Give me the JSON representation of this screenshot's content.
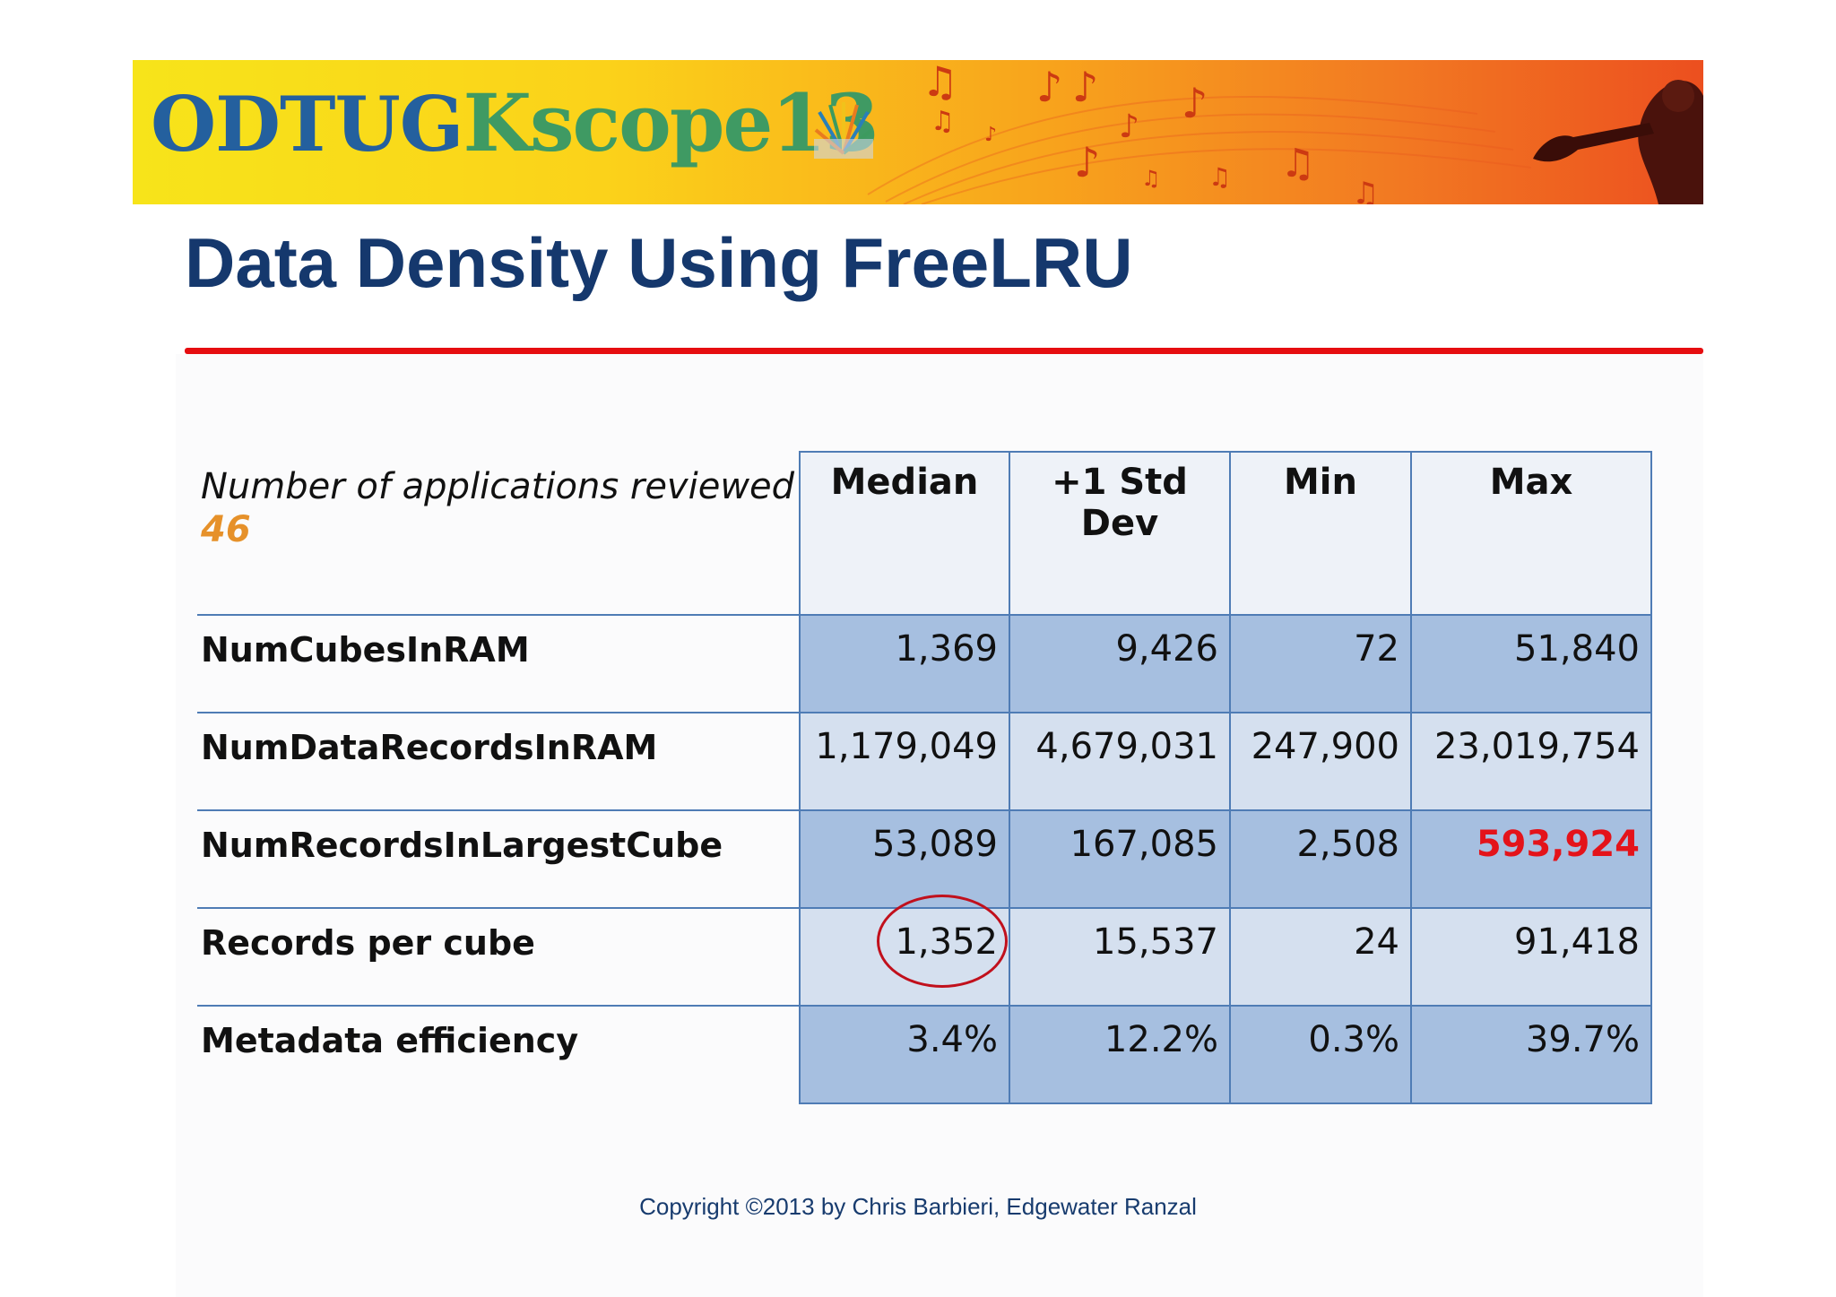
{
  "banner": {
    "logo_odtug": "ODTUG",
    "logo_kscope": "Kscope13"
  },
  "title": "Data Density Using FreeLRU",
  "table": {
    "corner_label": "Number of applications reviewed",
    "corner_count": "46",
    "columns": [
      "Median",
      "+1 Std Dev",
      "Min",
      "Max"
    ],
    "rows": [
      {
        "label": "NumCubesInRAM",
        "values": [
          "1,369",
          "9,426",
          "72",
          "51,840"
        ]
      },
      {
        "label": "NumDataRecordsInRAM",
        "values": [
          "1,179,049",
          "4,679,031",
          "247,900",
          "23,019,754"
        ]
      },
      {
        "label": "NumRecordsInLargestCube",
        "values": [
          "53,089",
          "167,085",
          "2,508",
          "593,924"
        ]
      },
      {
        "label": "Records per cube",
        "values": [
          "1,352",
          "15,537",
          "24",
          "91,418"
        ]
      },
      {
        "label": "Metadata efficiency",
        "values": [
          "3.4%",
          "12.2%",
          "0.3%",
          "39.7%"
        ]
      }
    ],
    "highlight_color": "#e4131a",
    "circle_color": "#c1101c"
  },
  "footer": {
    "copyright": "Copyright ©2013 by Chris Barbieri, Edgewater Ranzal"
  },
  "colors": {
    "title": "#15386d",
    "title_rule": "#e60d10",
    "table_border": "#4f7cb5",
    "row_dark": "#a6bfe0",
    "row_light": "#d5e0ef",
    "count_accent": "#e6912a"
  }
}
